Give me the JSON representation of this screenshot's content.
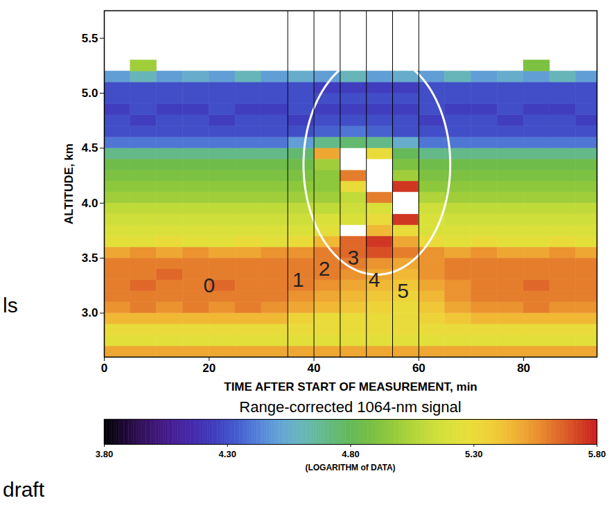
{
  "chart_data": {
    "type": "heatmap",
    "x_label": "TIME AFTER START OF MEASUREMENT, min",
    "y_label": "ALTITUDE, km",
    "xlim": [
      0,
      94
    ],
    "xticks": [
      0,
      20,
      40,
      60,
      80
    ],
    "ylim": [
      2.6,
      5.75
    ],
    "yticks": [
      {
        "value": 3,
        "label": "3.0"
      },
      {
        "value": 3.5,
        "label": "3.5"
      },
      {
        "value": 4,
        "label": "4.0"
      },
      {
        "value": 4.5,
        "label": "4.5"
      },
      {
        "value": 5,
        "label": "5.0"
      },
      {
        "value": 5.5,
        "label": "5.5"
      }
    ],
    "x_edges": [
      0,
      5,
      10,
      15,
      20,
      25,
      30,
      35,
      40,
      45,
      50,
      55,
      60,
      65,
      70,
      75,
      80,
      85,
      90,
      95
    ],
    "y_edges": [
      2.6,
      2.7,
      2.8,
      2.9,
      3.0,
      3.1,
      3.2,
      3.3,
      3.4,
      3.5,
      3.6,
      3.7,
      3.8,
      3.9,
      4.0,
      4.1,
      4.2,
      4.3,
      4.4,
      4.5,
      4.6,
      4.7,
      4.8,
      4.9,
      5.0,
      5.1,
      5.2,
      5.3
    ],
    "cells": [
      [
        5.5,
        5.5,
        5.5,
        5.5,
        5.5,
        5.5,
        5.5,
        5.5,
        5.5,
        5.5,
        5.5,
        5.5,
        5.5,
        5.5,
        5.5,
        5.5,
        5.5,
        5.5,
        5.5
      ],
      [
        5.25,
        5.25,
        5.25,
        5.25,
        5.25,
        5.25,
        5.25,
        5.25,
        5.25,
        5.25,
        5.25,
        5.25,
        5.25,
        5.25,
        5.25,
        5.25,
        5.25,
        5.25,
        5.25
      ],
      [
        5.3,
        5.3,
        5.3,
        5.3,
        5.3,
        5.3,
        5.3,
        5.3,
        5.3,
        5.3,
        5.3,
        5.3,
        5.3,
        5.3,
        5.3,
        5.3,
        5.3,
        5.3,
        5.3
      ],
      [
        5.45,
        5.45,
        5.45,
        5.45,
        5.45,
        5.45,
        5.45,
        5.35,
        5.3,
        5.3,
        5.3,
        5.3,
        5.35,
        5.4,
        5.45,
        5.45,
        5.45,
        5.45,
        5.45
      ],
      [
        5.55,
        5.6,
        5.55,
        5.6,
        5.55,
        5.6,
        5.55,
        5.5,
        5.45,
        5.4,
        5.35,
        5.3,
        5.4,
        5.5,
        5.55,
        5.55,
        5.6,
        5.55,
        5.55
      ],
      [
        5.6,
        5.6,
        5.6,
        5.6,
        5.6,
        5.6,
        5.6,
        5.55,
        5.5,
        5.45,
        5.4,
        5.35,
        5.45,
        5.55,
        5.6,
        5.6,
        5.6,
        5.6,
        5.6
      ],
      [
        5.6,
        5.65,
        5.6,
        5.6,
        5.65,
        5.6,
        5.6,
        5.6,
        5.55,
        5.5,
        5.45,
        5.4,
        5.5,
        5.55,
        5.6,
        5.6,
        5.65,
        5.6,
        5.6
      ],
      [
        5.6,
        5.6,
        5.65,
        5.6,
        5.6,
        5.6,
        5.6,
        5.6,
        5.6,
        5.55,
        5.5,
        5.45,
        5.55,
        5.6,
        5.6,
        5.6,
        5.6,
        5.6,
        5.6
      ],
      [
        5.6,
        5.6,
        5.6,
        5.6,
        5.6,
        5.6,
        5.6,
        5.6,
        5.6,
        5.6,
        5.55,
        5.5,
        5.55,
        5.6,
        5.6,
        5.6,
        5.6,
        5.6,
        5.6
      ],
      [
        5.5,
        5.55,
        5.5,
        5.55,
        5.5,
        5.5,
        5.55,
        5.55,
        5.6,
        5.65,
        5.7,
        5.6,
        5.55,
        5.5,
        5.55,
        5.5,
        5.5,
        5.55,
        5.5
      ],
      [
        5.25,
        5.25,
        5.3,
        5.25,
        5.25,
        5.3,
        5.25,
        5.3,
        5.45,
        5.65,
        5.75,
        5.5,
        5.3,
        5.25,
        5.3,
        5.25,
        5.25,
        5.3,
        5.25
      ],
      [
        5.2,
        5.2,
        5.2,
        5.2,
        5.2,
        5.2,
        5.2,
        5.2,
        5.25,
        5.9,
        5.45,
        5.3,
        5.2,
        5.2,
        5.2,
        5.2,
        5.2,
        5.2,
        5.2
      ],
      [
        5.15,
        5.15,
        5.15,
        5.15,
        5.15,
        5.15,
        5.15,
        5.15,
        5.2,
        5.2,
        5.3,
        5.75,
        5.2,
        5.15,
        5.15,
        5.15,
        5.15,
        5.15,
        5.15
      ],
      [
        5.1,
        5.1,
        5.1,
        5.1,
        5.1,
        5.1,
        5.1,
        5.1,
        5.1,
        5.15,
        5.2,
        5.9,
        5.15,
        5.1,
        5.1,
        5.1,
        5.1,
        5.1,
        5.1
      ],
      [
        5.0,
        5.0,
        5.0,
        5.0,
        5.0,
        5.0,
        5.0,
        5.0,
        5.0,
        5.1,
        5.6,
        5.9,
        5.05,
        5.0,
        5.0,
        5.0,
        5.0,
        5.0,
        5.0
      ],
      [
        4.95,
        4.95,
        4.95,
        4.95,
        4.95,
        4.95,
        4.95,
        4.95,
        4.95,
        5.3,
        5.9,
        5.75,
        4.95,
        4.95,
        4.95,
        4.95,
        4.95,
        4.95,
        4.95
      ],
      [
        4.9,
        4.9,
        4.9,
        4.9,
        4.9,
        4.9,
        4.9,
        4.9,
        4.95,
        5.6,
        5.9,
        5.0,
        4.9,
        4.9,
        4.9,
        4.9,
        4.9,
        4.9,
        4.9
      ],
      [
        4.85,
        4.85,
        4.85,
        4.85,
        4.85,
        4.85,
        4.85,
        4.85,
        5.0,
        5.9,
        5.9,
        4.9,
        4.85,
        4.85,
        4.85,
        4.85,
        4.85,
        4.85,
        4.85
      ],
      [
        4.7,
        4.7,
        4.7,
        4.7,
        4.7,
        4.7,
        4.7,
        4.75,
        5.5,
        5.9,
        5.3,
        4.8,
        4.7,
        4.7,
        4.7,
        4.7,
        4.7,
        4.7,
        4.7
      ],
      [
        4.4,
        4.4,
        4.4,
        4.4,
        4.4,
        4.4,
        4.4,
        4.5,
        4.7,
        4.75,
        4.7,
        4.55,
        4.4,
        4.4,
        4.4,
        4.4,
        4.4,
        4.4,
        4.4
      ],
      [
        4.3,
        4.3,
        4.3,
        4.3,
        4.3,
        4.3,
        4.3,
        4.3,
        4.35,
        4.4,
        4.35,
        4.3,
        4.3,
        4.3,
        4.3,
        4.3,
        4.3,
        4.3,
        4.3
      ],
      [
        4.3,
        4.25,
        4.3,
        4.3,
        4.25,
        4.3,
        4.3,
        4.25,
        4.3,
        4.3,
        4.3,
        4.3,
        4.25,
        4.3,
        4.3,
        4.25,
        4.3,
        4.3,
        4.25
      ],
      [
        4.25,
        4.3,
        4.25,
        4.25,
        4.3,
        4.25,
        4.25,
        4.3,
        4.25,
        4.25,
        4.25,
        4.25,
        4.3,
        4.25,
        4.25,
        4.3,
        4.25,
        4.25,
        4.3
      ],
      [
        4.3,
        4.3,
        4.3,
        4.3,
        4.3,
        4.3,
        4.3,
        4.3,
        4.3,
        4.3,
        4.3,
        4.3,
        4.3,
        4.3,
        4.3,
        4.3,
        4.3,
        4.3,
        4.3
      ],
      [
        4.3,
        4.3,
        4.3,
        4.3,
        4.3,
        4.3,
        4.3,
        4.3,
        4.25,
        4.25,
        4.25,
        4.25,
        4.3,
        4.3,
        4.3,
        4.3,
        4.3,
        4.3,
        4.3
      ],
      [
        4.5,
        4.6,
        4.5,
        4.55,
        4.5,
        4.6,
        4.5,
        4.55,
        4.5,
        4.6,
        4.5,
        4.55,
        4.5,
        4.6,
        4.5,
        4.55,
        4.5,
        4.6,
        4.5
      ],
      [
        null,
        5.0,
        null,
        null,
        null,
        null,
        null,
        null,
        null,
        null,
        null,
        null,
        null,
        null,
        null,
        null,
        4.9,
        null,
        null
      ]
    ],
    "colorbar": {
      "title": "Range-corrected 1064-nm signal",
      "label": "(LOGARITHM of DATA)",
      "lim": [
        3.8,
        5.8
      ],
      "ticks": [
        {
          "value": 3.8,
          "label": "3.80"
        },
        {
          "value": 4.3,
          "label": "4.30"
        },
        {
          "value": 4.8,
          "label": "4.80"
        },
        {
          "value": 5.3,
          "label": "5.30"
        },
        {
          "value": 5.8,
          "label": "5.80"
        }
      ]
    },
    "vlines": [
      35,
      40,
      45,
      50,
      55,
      60
    ],
    "annotations": [
      {
        "text": "0",
        "x": 20,
        "y": 3.25
      },
      {
        "text": "1",
        "x": 37,
        "y": 3.3
      },
      {
        "text": "2",
        "x": 42,
        "y": 3.4
      },
      {
        "text": "3",
        "x": 47.5,
        "y": 3.5
      },
      {
        "text": "4",
        "x": 51.5,
        "y": 3.3
      },
      {
        "text": "5",
        "x": 57,
        "y": 3.2
      }
    ],
    "ellipse": {
      "x": 52,
      "y": 4.35,
      "rx": 14,
      "ry": 1.0
    },
    "side_texts": [
      "ls",
      "draft"
    ]
  }
}
